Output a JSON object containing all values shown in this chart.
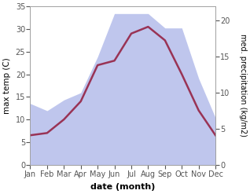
{
  "months": [
    "Jan",
    "Feb",
    "Mar",
    "Apr",
    "May",
    "Jun",
    "Jul",
    "Aug",
    "Sep",
    "Oct",
    "Nov",
    "Dec"
  ],
  "month_x": [
    0,
    1,
    2,
    3,
    4,
    5,
    6,
    7,
    8,
    9,
    10,
    11
  ],
  "temp_max": [
    6.5,
    7,
    10,
    14,
    22,
    23,
    29,
    30.5,
    27.5,
    20,
    12,
    6.5
  ],
  "precip": [
    8.5,
    7.5,
    9,
    10,
    15,
    21,
    21,
    21,
    19,
    19,
    12,
    6.5
  ],
  "temp_ylim": [
    0,
    35
  ],
  "precip_ylim": [
    0,
    22
  ],
  "temp_color": "#993355",
  "precip_fill_color": "#aab4e8",
  "precip_fill_alpha": 0.75,
  "xlabel": "date (month)",
  "ylabel_left": "max temp (C)",
  "ylabel_right": "med. precipitation (kg/m2)",
  "bg_color": "#ffffff",
  "temp_linewidth": 1.8,
  "precip_yticks": [
    0,
    5,
    10,
    15,
    20
  ],
  "temp_yticks": [
    0,
    5,
    10,
    15,
    20,
    25,
    30,
    35
  ]
}
